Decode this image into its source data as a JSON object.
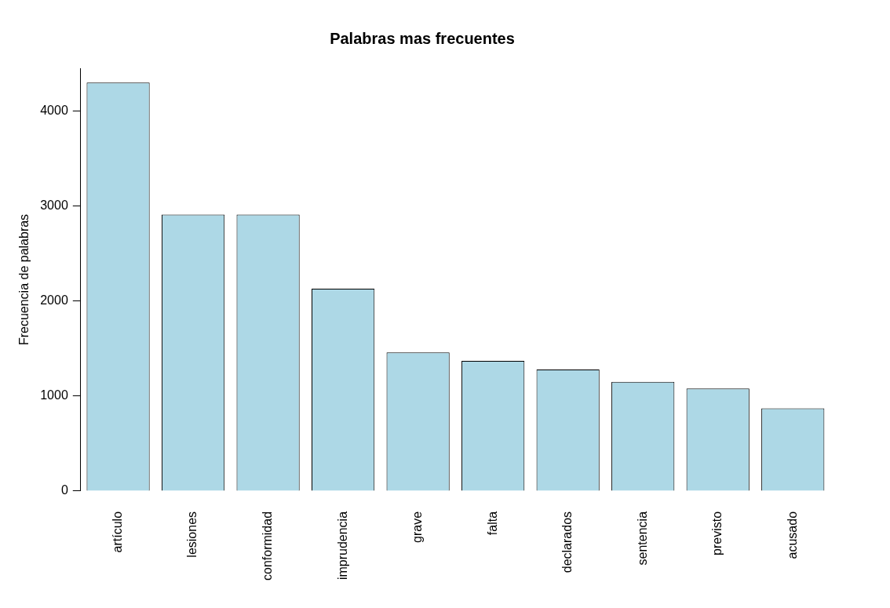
{
  "chart_data": {
    "type": "bar",
    "title": "Palabras mas frecuentes",
    "ylabel": "Frecuencia de palabras",
    "categories": [
      "artículo",
      "lesiones",
      "conformidad",
      "imprudencia",
      "grave",
      "falta",
      "declarados",
      "sentencia",
      "previsto",
      "acusado"
    ],
    "values": [
      4300,
      2910,
      2910,
      2130,
      1460,
      1370,
      1280,
      1150,
      1080,
      870
    ],
    "color": "#add8e6",
    "ylim": [
      0,
      4450
    ],
    "yticks": [
      0,
      1000,
      2000,
      3000,
      4000
    ]
  }
}
